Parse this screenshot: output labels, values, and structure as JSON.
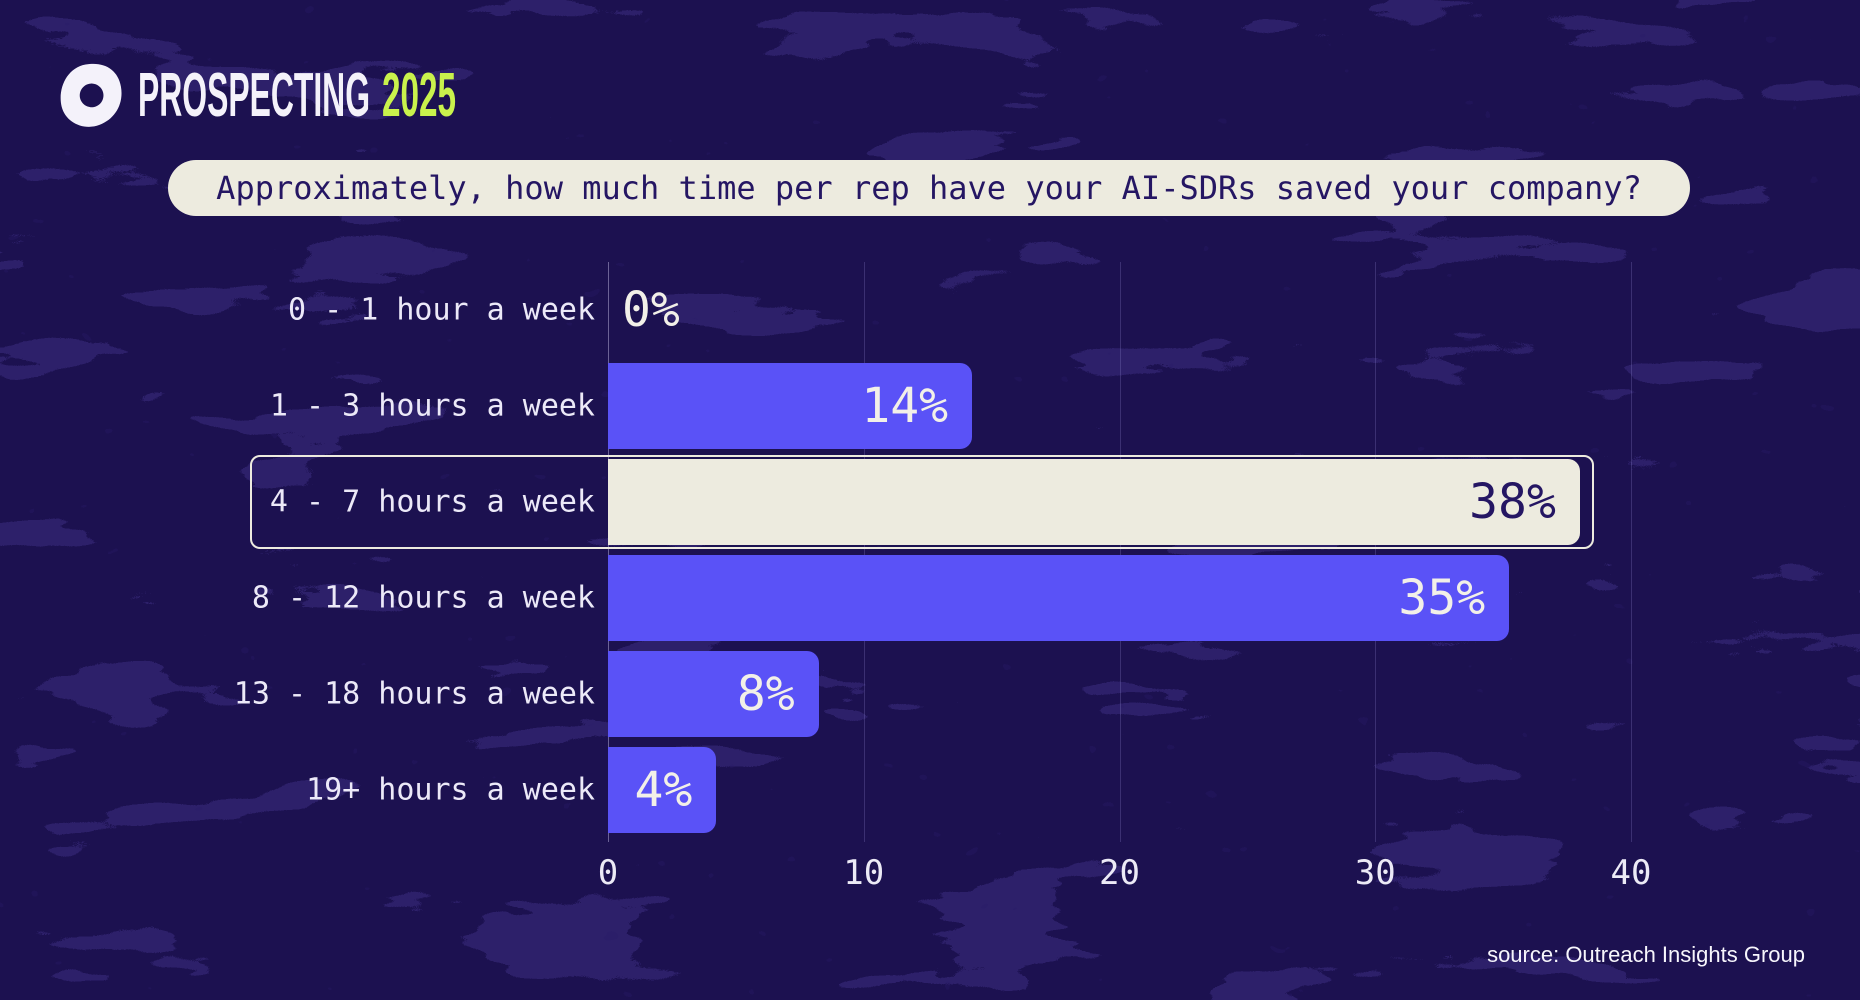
{
  "logo": {
    "icon": "outreach-logo",
    "wordmark": "PROSPECTING",
    "year": "2025",
    "wordmark_color": "#f4f2fa",
    "year_color": "#c9f24c"
  },
  "title": {
    "text": "Approximately, how much time per rep have your AI-SDRs saved your company?"
  },
  "chart_data": {
    "type": "bar",
    "orientation": "horizontal",
    "title": "Approximately, how much time per rep have your AI-SDRs saved your company?",
    "categories": [
      "0 - 1 hour a week",
      "1 - 3 hours a week",
      "4 - 7 hours a week",
      "8 - 12 hours a week",
      "13 - 18 hours a week",
      "19+ hours a week"
    ],
    "values": [
      0,
      14,
      38,
      35,
      8,
      4
    ],
    "value_labels": [
      "0%",
      "14%",
      "38%",
      "35%",
      "8%",
      "4%"
    ],
    "highlighted_index": 2,
    "xlim": [
      0,
      40
    ],
    "x_ticks": [
      0,
      10,
      20,
      30,
      40
    ],
    "x_tick_labels": [
      "0",
      "10",
      "20",
      "30",
      "40"
    ],
    "grid": true,
    "legend": "none",
    "bar_color": "#5a52f7",
    "highlight_color": "#edebdf",
    "bar_value_color": "#f2f0e8",
    "highlight_value_color": "#251663"
  },
  "source": {
    "text": "source: Outreach Insights Group"
  },
  "colors": {
    "background": "#1c1150",
    "texture": "#3a2d80",
    "pill_bg": "#edebdf",
    "pill_text": "#251663",
    "label_text": "#ece9f8"
  }
}
